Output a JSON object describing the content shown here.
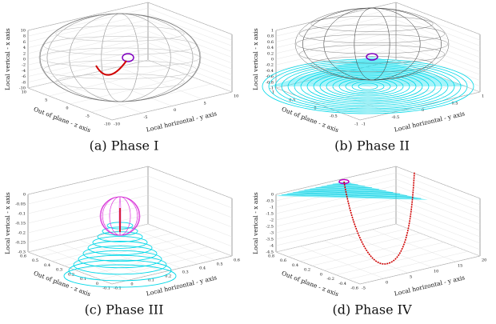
{
  "panels": [
    {
      "caption": "(a) Phase I",
      "vertical_label": "Local verical - x axis",
      "depth_label": "Out of plane - z axis",
      "horizontal_label": "Local horizontal - y axis",
      "vertical_ticks": [
        "10",
        "8",
        "6",
        "4",
        "2",
        "0",
        "-2",
        "-4",
        "-6",
        "-8",
        "-10"
      ],
      "depth_ticks": [
        "10",
        "5",
        "0",
        "-5",
        "-10"
      ],
      "horizontal_ticks": [
        "-10",
        "-5",
        "0",
        "5",
        "10"
      ]
    },
    {
      "caption": "(b) Phase II",
      "vertical_label": "Local verical - x axis",
      "depth_label": "Out of plane - z axis",
      "horizontal_label": "Local horizontal - y axis",
      "vertical_ticks": [
        "1",
        "0.8",
        "0.6",
        "0.4",
        "0.2",
        "0",
        "-0.2",
        "-0.4",
        "-0.6",
        "-0.8",
        "-1"
      ],
      "depth_ticks": [
        "1",
        "0.5",
        "0",
        "-0.5",
        "-1"
      ],
      "horizontal_ticks": [
        "-1",
        "-0.5",
        "0",
        "0.5",
        "1"
      ]
    },
    {
      "caption": "(c) Phase III",
      "vertical_label": "Local verical - x axis",
      "depth_label": "Out of plane - z axis",
      "horizontal_label": "Local horizontal - y axis",
      "vertical_ticks": [
        "0",
        "-0.05",
        "-0.1",
        "-0.15",
        "-0.2",
        "-0.25",
        "-0.3"
      ],
      "depth_ticks": [
        "0.6",
        "0.5",
        "0.4",
        "0.3",
        "0.2",
        "0.1",
        "0",
        "-0.1"
      ],
      "horizontal_ticks": [
        "-0.1",
        "0",
        "0.1",
        "0.2",
        "0.3",
        "0.4",
        "0.5",
        "0.6"
      ]
    },
    {
      "caption": "(d) Phase IV",
      "vertical_label": "Local verical - x axis",
      "depth_label": "Out of plane - z axis",
      "horizontal_label": "Local horizontal - y axis",
      "vertical_ticks": [
        "0",
        "-0.5",
        "-1",
        "-1.5",
        "-2",
        "-2.5",
        "-3",
        "-3.5",
        "-4",
        "-4.5"
      ],
      "depth_ticks": [
        "0.8",
        "0.6",
        "0.4",
        "0.2",
        "0",
        "-0.2",
        "-0.4",
        "-0.6"
      ],
      "horizontal_ticks": [
        "-5",
        "0",
        "5",
        "10",
        "15",
        "20"
      ]
    }
  ]
}
